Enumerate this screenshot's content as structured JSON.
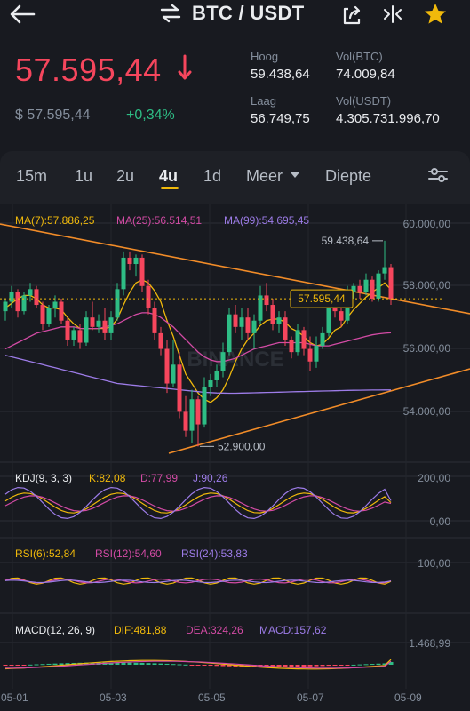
{
  "header": {
    "pair": "BTC / USDT",
    "icons": [
      "back-arrow-icon",
      "swap-icon",
      "share-icon",
      "compress-icon",
      "star-icon"
    ]
  },
  "price": {
    "last": "57.595,44",
    "usd": "$ 57.595,44",
    "change_pct": "+0,34%"
  },
  "stats": {
    "high_label": "Hoog",
    "high_value": "59.438,64",
    "low_label": "Laag",
    "low_value": "56.749,75",
    "vol_btc_label": "Vol(BTC)",
    "vol_btc_value": "74.009,84",
    "vol_usdt_label": "Vol(USDT)",
    "vol_usdt_value": "4.305.731.996,70"
  },
  "tabs": {
    "t15m": "15m",
    "t1u": "1u",
    "t2u": "2u",
    "t4u": "4u",
    "t1d": "1d",
    "more": "Meer",
    "depth": "Diepte",
    "active": "4u"
  },
  "indicators": {
    "ma7": "MA(7):57.886,25",
    "ma25": "MA(25):56.514,51",
    "ma99": "MA(99):54.695,45",
    "kdj_label": "KDJ(9, 3, 3)",
    "kdj_k": "K:82,08",
    "kdj_d": "D:77,99",
    "kdj_j": "J:90,26",
    "rsi6": "RSI(6):52,84",
    "rsi12": "RSI(12):54,60",
    "rsi24": "RSI(24):53,83",
    "macd_label": "MACD(12, 26, 9)",
    "dif": "DIF:481,88",
    "dea": "DEA:324,26",
    "macd": "MACD:157,62"
  },
  "axes": {
    "price_ticks": [
      "60.000,00",
      "58.000,00",
      "56.000,00",
      "54.000,00"
    ],
    "kdj_ticks": [
      "200,00",
      "0,00"
    ],
    "rsi_ticks": [
      "100,00"
    ],
    "macd_ticks": [
      "1.468,99"
    ],
    "dates": [
      "05-01",
      "05-03",
      "05-05",
      "05-07",
      "05-09"
    ]
  },
  "chart_labels": {
    "high_marker": "59.438,64",
    "low_marker": "52.900,00",
    "current_price": "57.595,44",
    "watermark": "BINANCE"
  },
  "colors": {
    "up": "#2ebd85",
    "down": "#f6465d",
    "accent": "#f0b90b",
    "ma7": "#f0b90b",
    "ma25": "#d34ba5",
    "ma99": "#9d7ce8",
    "trendline": "#f28c28"
  },
  "chart_data": {
    "type": "candlestick",
    "timeframe": "4u",
    "ylim": [
      52500,
      60500
    ],
    "yticks": [
      60000,
      58000,
      56000,
      54000
    ],
    "x_dates": [
      "05-01",
      "05-03",
      "05-05",
      "05-07",
      "05-09"
    ],
    "candles": [
      [
        57200,
        57600,
        56900,
        57500
      ],
      [
        57500,
        58000,
        57300,
        57800
      ],
      [
        57800,
        57900,
        57000,
        57200
      ],
      [
        57200,
        57800,
        57100,
        57700
      ],
      [
        57700,
        58100,
        57500,
        57900
      ],
      [
        57900,
        58000,
        57300,
        57400
      ],
      [
        57400,
        57500,
        56600,
        56800
      ],
      [
        56800,
        57400,
        56700,
        57300
      ],
      [
        57300,
        57700,
        57000,
        57500
      ],
      [
        57500,
        57600,
        56800,
        56900
      ],
      [
        56900,
        57000,
        56100,
        56300
      ],
      [
        56300,
        56700,
        56100,
        56600
      ],
      [
        56600,
        56800,
        56000,
        56200
      ],
      [
        56200,
        57200,
        56100,
        57000
      ],
      [
        57000,
        57500,
        56600,
        56700
      ],
      [
        56700,
        57100,
        56500,
        56900
      ],
      [
        56900,
        57300,
        56300,
        56500
      ],
      [
        56500,
        57200,
        56300,
        57000
      ],
      [
        57000,
        58100,
        56900,
        57900
      ],
      [
        57900,
        59100,
        57700,
        58900
      ],
      [
        58900,
        59100,
        58500,
        58700
      ],
      [
        58700,
        59000,
        58300,
        58900
      ],
      [
        58900,
        59000,
        57800,
        58000
      ],
      [
        58000,
        58200,
        57100,
        57300
      ],
      [
        57300,
        57500,
        56300,
        56500
      ],
      [
        56500,
        56700,
        55800,
        56000
      ],
      [
        56000,
        56300,
        54600,
        54900
      ],
      [
        54900,
        56300,
        54800,
        55500
      ],
      [
        55500,
        55900,
        53800,
        54000
      ],
      [
        54000,
        54500,
        53200,
        53400
      ],
      [
        53400,
        54700,
        53000,
        54400
      ],
      [
        54400,
        54500,
        52900,
        53600
      ],
      [
        53600,
        55100,
        53500,
        54800
      ],
      [
        54800,
        55200,
        54500,
        55000
      ],
      [
        55000,
        55500,
        54800,
        55300
      ],
      [
        55300,
        56200,
        55100,
        55900
      ],
      [
        55900,
        57300,
        55800,
        57100
      ],
      [
        57100,
        57400,
        56500,
        56700
      ],
      [
        56700,
        57300,
        56300,
        57000
      ],
      [
        57000,
        57300,
        56300,
        56500
      ],
      [
        56500,
        57100,
        56000,
        56900
      ],
      [
        56900,
        58000,
        56800,
        57700
      ],
      [
        57700,
        58100,
        57200,
        57400
      ],
      [
        57400,
        57600,
        56600,
        56800
      ],
      [
        56800,
        57200,
        56500,
        57000
      ],
      [
        57000,
        57200,
        56100,
        56300
      ],
      [
        56300,
        56400,
        55700,
        55900
      ],
      [
        55900,
        56800,
        55800,
        56600
      ],
      [
        56600,
        56700,
        55800,
        56000
      ],
      [
        56000,
        56400,
        55300,
        55600
      ],
      [
        55600,
        56400,
        55400,
        56100
      ],
      [
        56100,
        56700,
        56000,
        56500
      ],
      [
        56500,
        57700,
        56400,
        57500
      ],
      [
        57500,
        57800,
        57000,
        57200
      ],
      [
        57200,
        57300,
        56700,
        56900
      ],
      [
        56900,
        58000,
        56800,
        57800
      ],
      [
        57800,
        58100,
        57600,
        58000
      ],
      [
        58000,
        58200,
        57600,
        57800
      ],
      [
        57800,
        58400,
        57700,
        58200
      ],
      [
        58200,
        58300,
        57500,
        57600
      ],
      [
        57600,
        58500,
        57500,
        58400
      ],
      [
        58400,
        59438.64,
        58200,
        58600
      ],
      [
        58600,
        58700,
        57400,
        57595.44
      ]
    ],
    "high_marker": 59438.64,
    "low_marker": 52900,
    "last_price": 57595.44,
    "ma7_last": 57886.25,
    "ma25_last": 56514.51,
    "ma99_last": 54695.45,
    "ma_series": {
      "MA(7)": [
        57300,
        57450,
        57600,
        57700,
        57700,
        57600,
        57400,
        57300,
        57300,
        57250,
        57000,
        56800,
        56650,
        56650,
        56650,
        56650,
        56650,
        56700,
        56950,
        57400,
        57800,
        58100,
        58200,
        58100,
        57850,
        57500,
        56900,
        56400,
        55800,
        55200,
        54900,
        54600,
        54400,
        54300,
        54450,
        54700,
        55100,
        55600,
        56000,
        56300,
        56500,
        56750,
        56900,
        56950,
        56950,
        56850,
        56650,
        56550,
        56400,
        56200,
        56100,
        56150,
        56350,
        56600,
        56700,
        57000,
        57250,
        57450,
        57650,
        57800,
        57950,
        58100,
        57886.25
      ],
      "MA(25)": [
        56000,
        56100,
        56200,
        56300,
        56400,
        56500,
        56550,
        56600,
        56650,
        56700,
        56700,
        56700,
        56650,
        56650,
        56650,
        56650,
        56700,
        56750,
        56800,
        56900,
        57000,
        57100,
        57150,
        57150,
        57100,
        57000,
        56850,
        56700,
        56500,
        56300,
        56100,
        55900,
        55750,
        55650,
        55600,
        55600,
        55650,
        55700,
        55800,
        55900,
        56000,
        56050,
        56100,
        56150,
        56200,
        56200,
        56200,
        56200,
        56200,
        56150,
        56100,
        56100,
        56100,
        56150,
        56200,
        56250,
        56300,
        56350,
        56400,
        56450,
        56480,
        56500,
        56514.51
      ],
      "MA(99)": [
        55800,
        55750,
        55700,
        55650,
        55600,
        55550,
        55500,
        55450,
        55400,
        55350,
        55300,
        55250,
        55200,
        55150,
        55100,
        55050,
        55000,
        54950,
        54900,
        54880,
        54860,
        54840,
        54820,
        54800,
        54780,
        54760,
        54740,
        54720,
        54700,
        54680,
        54660,
        54640,
        54620,
        54610,
        54600,
        54595,
        54590,
        54590,
        54595,
        54600,
        54605,
        54610,
        54615,
        54620,
        54625,
        54630,
        54635,
        54640,
        54645,
        54650,
        54655,
        54660,
        54665,
        54670,
        54675,
        54680,
        54684,
        54687,
        54689,
        54691,
        54693,
        54694,
        54695.45
      ]
    },
    "kdj": {
      "K": 82.08,
      "D": 77.99,
      "J": 90.26,
      "ylim": [
        -50,
        220
      ],
      "yticks": [
        200,
        0
      ]
    },
    "rsi": {
      "RSI(6)": 52.84,
      "RSI(12)": 54.6,
      "RSI(24)": 53.83,
      "ylim": [
        0,
        100
      ],
      "yticks": [
        100
      ]
    },
    "macd": {
      "DIF": 481.88,
      "DEA": 324.26,
      "MACD": 157.62,
      "ytick": 1468.99
    }
  }
}
